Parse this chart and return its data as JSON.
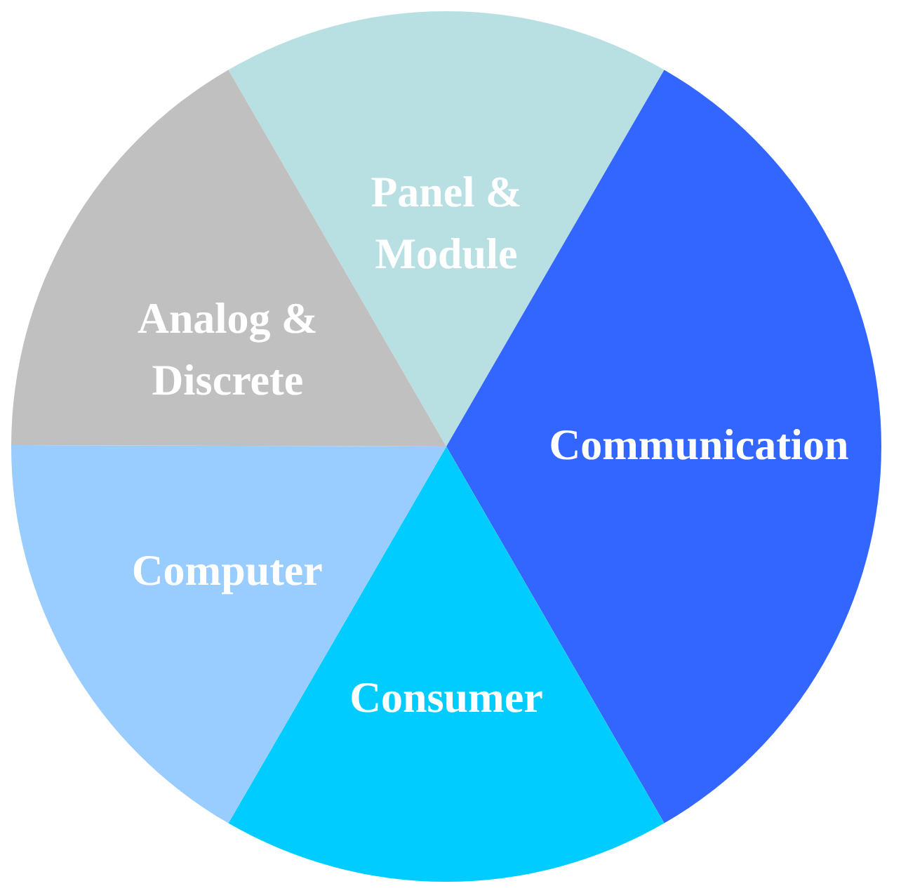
{
  "chart_data": {
    "type": "pie",
    "categories": [
      "Panel & Module",
      "Communication",
      "Consumer",
      "Computer",
      "Analog & Discrete"
    ],
    "values": [
      16.7,
      33.3,
      16.7,
      16.7,
      16.6
    ],
    "colors": [
      "#b8e0e3",
      "#3366ff",
      "#00ccff",
      "#99ccff",
      "#c0c0c0"
    ],
    "legend": false
  }
}
